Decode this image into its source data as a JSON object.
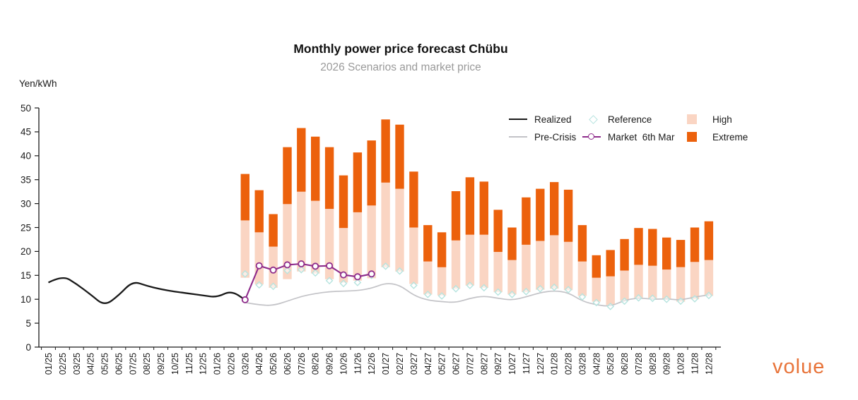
{
  "header": {
    "title": "Monthly power price forecast Chübu",
    "subtitle": "2026 Scenarios and market price",
    "y_axis_unit": "Yen/kWh"
  },
  "legend": {
    "items": [
      {
        "label": "Realized",
        "swatch": "line",
        "color_key": "realized"
      },
      {
        "label": "Reference",
        "swatch": "diamond",
        "color_key": "reference"
      },
      {
        "label": "High",
        "swatch": "box",
        "color_key": "high"
      },
      {
        "label": "Pre-Crisis",
        "swatch": "line",
        "color_key": "pre_crisis"
      },
      {
        "label": "Market  6th Mar",
        "swatch": "marker-line",
        "color_key": "market"
      },
      {
        "label": "Extreme",
        "swatch": "box",
        "color_key": "extreme"
      }
    ]
  },
  "logo": {
    "text": "volue",
    "color": "#E8743A"
  },
  "chart_data": {
    "type": "bar",
    "title": "Monthly power price forecast Chübu",
    "subtitle": "2026 Scenarios and market price",
    "ylabel": "Yen/kWh",
    "xlabel": "",
    "ylim": [
      0,
      50
    ],
    "ytick_step": 5,
    "grid": false,
    "legend_position": "top-right",
    "categories": [
      "01/25",
      "02/25",
      "03/25",
      "04/25",
      "05/25",
      "06/25",
      "07/25",
      "08/25",
      "09/25",
      "10/25",
      "11/25",
      "12/25",
      "01/26",
      "02/26",
      "03/26",
      "04/26",
      "05/26",
      "06/26",
      "07/26",
      "08/26",
      "09/26",
      "10/26",
      "11/26",
      "12/26",
      "01/27",
      "02/27",
      "03/27",
      "04/27",
      "05/27",
      "06/27",
      "07/27",
      "08/27",
      "09/27",
      "10/27",
      "11/27",
      "12/27",
      "01/28",
      "02/28",
      "03/28",
      "04/28",
      "05/28",
      "06/28",
      "07/28",
      "08/28",
      "09/28",
      "10/28",
      "11/28",
      "12/28"
    ],
    "bar_start_index": 14,
    "bars": {
      "note": "floating range bars from 'low' up to 'extreme'; peach segment = low..high (High scenario), orange segment = high..extreme (Extreme scenario)",
      "low": [
        14.5,
        13.1,
        12.4,
        14.2,
        15.8,
        15.4,
        14.2,
        13.5,
        13.9,
        14.4,
        16.7,
        15.8,
        13.2,
        11.0,
        10.8,
        12.2,
        12.9,
        12.4,
        11.5,
        11.0,
        11.5,
        12.0,
        12.2,
        11.9,
        10.7,
        9.5,
        8.8,
        9.7,
        10.2,
        10.2,
        10.0,
        9.5,
        10.0,
        10.7
      ],
      "high": [
        26.5,
        24.0,
        21.0,
        29.9,
        32.5,
        30.6,
        28.9,
        24.9,
        28.2,
        29.6,
        34.4,
        33.1,
        25.0,
        17.9,
        16.7,
        22.3,
        23.5,
        23.5,
        19.9,
        18.2,
        21.4,
        22.2,
        23.4,
        22.0,
        17.9,
        14.5,
        14.8,
        16.0,
        17.2,
        17.0,
        16.2,
        16.7,
        17.8,
        18.2
      ],
      "extreme": [
        36.2,
        32.8,
        27.8,
        41.8,
        45.8,
        44.0,
        41.8,
        35.9,
        40.7,
        43.2,
        47.6,
        46.5,
        36.7,
        25.5,
        24.0,
        32.6,
        35.5,
        34.6,
        28.7,
        25.0,
        31.3,
        33.1,
        34.5,
        32.9,
        25.5,
        19.2,
        20.3,
        22.6,
        24.9,
        24.7,
        22.9,
        22.4,
        25.0,
        26.3
      ]
    },
    "series": [
      {
        "name": "Realized",
        "type": "line",
        "start_index": 0,
        "values": [
          13.5,
          15.0,
          13.2,
          11.0,
          8.6,
          10.8,
          13.8,
          12.8,
          12.1,
          11.6,
          11.2,
          10.8,
          10.4,
          11.8,
          9.9
        ]
      },
      {
        "name": "Pre-Crisis",
        "type": "line",
        "start_index": 14,
        "values": [
          9.3,
          8.8,
          8.7,
          9.6,
          10.6,
          11.2,
          11.6,
          11.7,
          11.8,
          12.3,
          13.4,
          13.0,
          10.8,
          9.8,
          9.5,
          9.3,
          10.2,
          10.7,
          10.2,
          9.8,
          10.5,
          11.4,
          11.8,
          11.4,
          9.6,
          8.8,
          8.5,
          9.8,
          10.3,
          10.0,
          10.1,
          9.8,
          10.5,
          10.9
        ]
      },
      {
        "name": "Market 6th Mar",
        "type": "line-marker",
        "start_index": 14,
        "values": [
          9.9,
          17.0,
          16.1,
          17.2,
          17.4,
          16.9,
          17.0,
          15.1,
          14.7,
          15.3
        ]
      },
      {
        "name": "Reference",
        "type": "scatter-diamond",
        "start_index": 14,
        "values": [
          15.3,
          13.0,
          12.7,
          16.0,
          16.2,
          15.5,
          13.9,
          13.3,
          13.5,
          15.0,
          16.9,
          15.9,
          12.9,
          11.0,
          10.7,
          12.2,
          12.9,
          12.4,
          11.5,
          11.0,
          11.6,
          12.2,
          12.5,
          12.0,
          10.5,
          9.3,
          8.5,
          9.6,
          10.3,
          10.2,
          10.0,
          9.6,
          10.1,
          10.8
        ]
      }
    ],
    "colors": {
      "realized": "#1a1a1a",
      "pre_crisis": "#c3c3c7",
      "market": "#8e2b8b",
      "reference": "#b7e4df",
      "high": "#fad5c3",
      "extreme": "#ec610c",
      "axis": "#1a1a1a",
      "subtitle": "#9a9a9a"
    }
  }
}
